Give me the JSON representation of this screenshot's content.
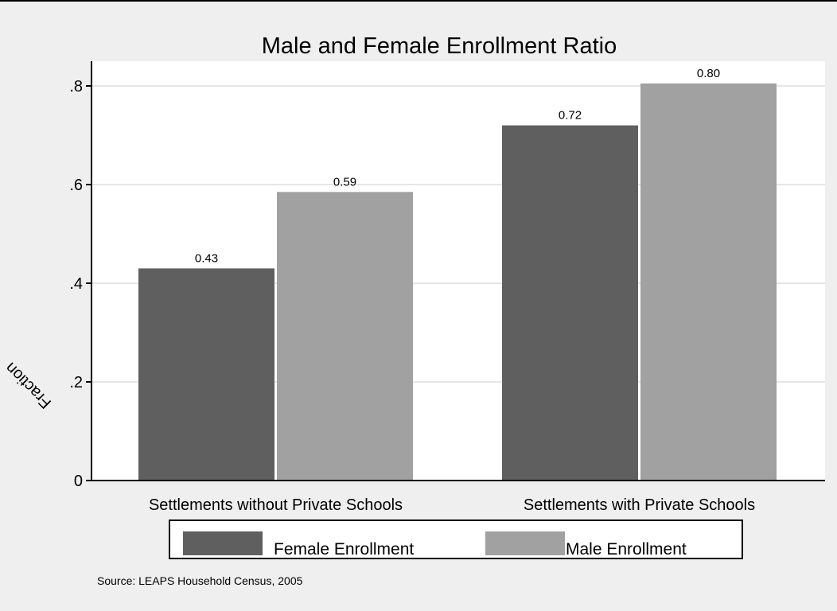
{
  "chart_data": {
    "type": "bar",
    "title": "Male and Female Enrollment Ratio",
    "xlabel": "",
    "ylabel": "Fraction",
    "ylim": [
      0,
      0.8
    ],
    "yticks": [
      {
        "value": 0,
        "label": "0"
      },
      {
        "value": 0.2,
        "label": ".2"
      },
      {
        "value": 0.4,
        "label": ".4"
      },
      {
        "value": 0.6,
        "label": ".6"
      },
      {
        "value": 0.8,
        "label": ".8"
      }
    ],
    "grid": true,
    "legend_position": "bottom",
    "categories": [
      "Settlements without Private Schools",
      "Settlements with Private Schools"
    ],
    "series": [
      {
        "name": "Female Enrollment",
        "values": [
          0.43,
          0.72
        ],
        "labels": [
          "0.43",
          "0.72"
        ],
        "color": "#5f5f5f"
      },
      {
        "name": "Male Enrollment",
        "values": [
          0.585,
          0.805
        ],
        "labels": [
          "0.59",
          "0.80"
        ],
        "color": "#a1a1a1"
      }
    ],
    "source": "Source: LEAPS Household Census, 2005"
  }
}
